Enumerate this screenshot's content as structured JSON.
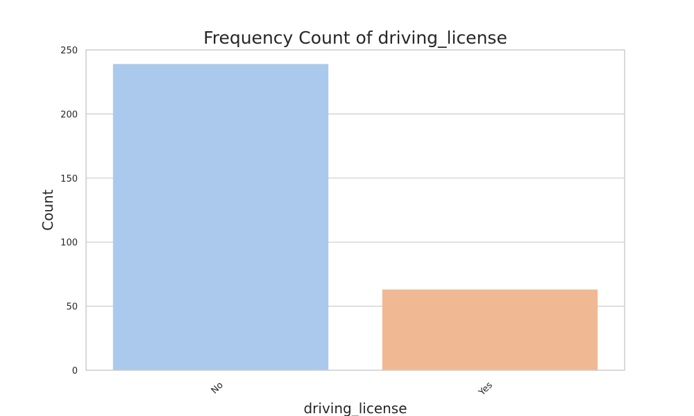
{
  "chart_data": {
    "type": "bar",
    "title": "Frequency Count of driving_license",
    "xlabel": "driving_license",
    "ylabel": "Count",
    "categories": [
      "No",
      "Yes"
    ],
    "values": [
      239,
      63
    ],
    "colors": [
      "#abc9ec",
      "#f0b994"
    ],
    "ylim": [
      0,
      250
    ],
    "yticks": [
      0,
      50,
      100,
      150,
      200,
      250
    ],
    "grid": true,
    "grid_axis": "y",
    "xtick_rotation": 45
  }
}
